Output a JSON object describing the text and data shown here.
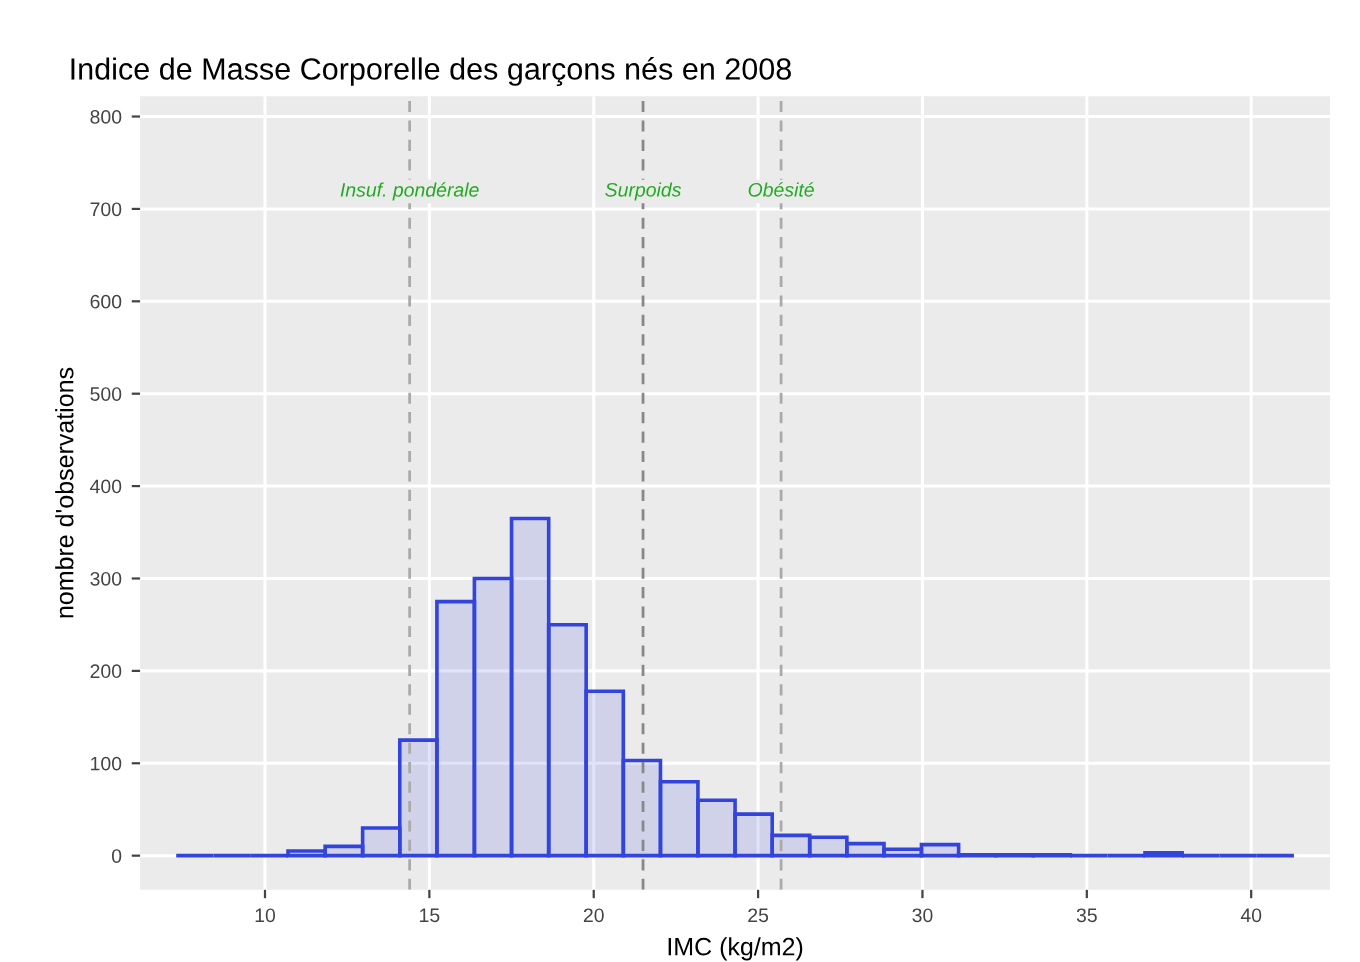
{
  "chart_data": {
    "type": "histogram",
    "title": "Indice de Masse Corporelle des garçons nés en 2008",
    "xlabel": "IMC (kg/m2)",
    "ylabel": "nombre d'observations",
    "bins": [
      7.3,
      8.43,
      9.57,
      10.7,
      11.83,
      12.97,
      14.1,
      15.23,
      16.37,
      17.5,
      18.63,
      19.77,
      20.9,
      22.03,
      23.17,
      24.3,
      25.43,
      26.57,
      27.7,
      28.83,
      29.97,
      31.1,
      32.23,
      33.37,
      34.5,
      35.63,
      36.77,
      37.9,
      39.03,
      40.17,
      41.3
    ],
    "values": [
      0,
      0,
      0,
      5,
      10,
      30,
      125,
      275,
      300,
      365,
      250,
      178,
      103,
      80,
      60,
      45,
      22,
      20,
      13,
      7,
      12,
      1,
      1,
      1,
      0,
      0,
      3,
      0,
      0,
      0
    ],
    "color": "#3344dd",
    "xlim": [
      6.2,
      42.4
    ],
    "ylim": [
      -37,
      822
    ],
    "xticks": [
      10,
      15,
      20,
      25,
      30,
      35,
      40
    ],
    "yticks": [
      0,
      100,
      200,
      300,
      400,
      500,
      600,
      700,
      800
    ],
    "grid": true,
    "ref_lines": [
      {
        "axis": "x",
        "value": 14.4,
        "color": "#aaaaaa",
        "line_style": "dashed",
        "label": "Insuf. pondérale"
      },
      {
        "axis": "x",
        "value": 21.5,
        "color": "#888888",
        "line_style": "dashed",
        "label": "Surpoids"
      },
      {
        "axis": "x",
        "value": 25.7,
        "color": "#aaaaaa",
        "line_style": "dashed",
        "label": "Obésité"
      }
    ]
  }
}
